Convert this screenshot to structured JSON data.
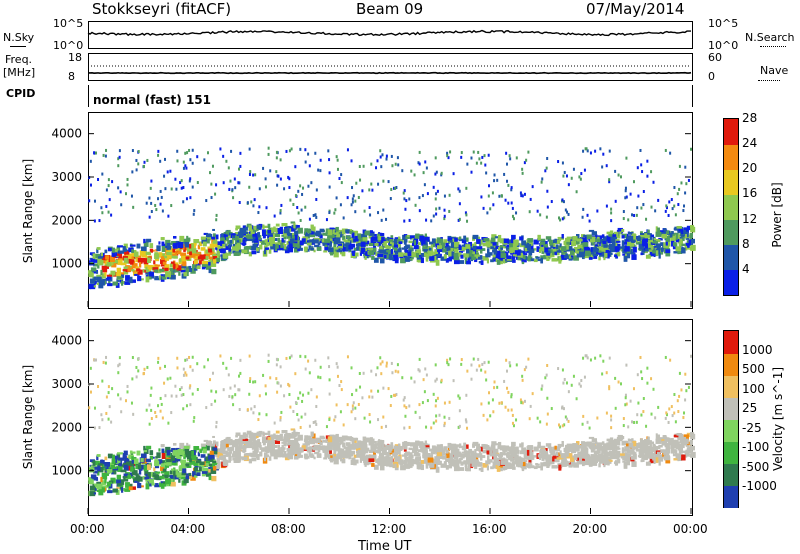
{
  "header": {
    "station": "Stokkseyri (fitACF)",
    "beam": "Beam 09",
    "date": "07/May/2014"
  },
  "nsky_panel": {
    "left_label": "N.Sky",
    "right_label": "N.Search",
    "left_ticks": [
      "10^5",
      "10^0"
    ],
    "right_ticks": [
      "10^5",
      "10^0"
    ]
  },
  "freq_panel": {
    "left_label_1": "Freq.",
    "left_label_2": "[MHz]",
    "right_label": "Nave",
    "left_ticks": [
      "18",
      "8"
    ],
    "right_ticks": [
      "60",
      "0"
    ]
  },
  "cpid_panel": {
    "label": "CPID",
    "value": "normal (fast) 151"
  },
  "x_axis": {
    "title": "Time UT",
    "tick_labels": [
      "00:00",
      "04:00",
      "08:00",
      "12:00",
      "16:00",
      "20:00",
      "00:00"
    ]
  },
  "chart_data": [
    {
      "type": "heatmap",
      "title": "",
      "ylabel": "Slant Range [km]",
      "xlabel": "Time UT",
      "ylim": [
        0,
        4500
      ],
      "y_ticks": [
        1000,
        2000,
        3000,
        4000
      ],
      "colorbar": {
        "label": "Power [dB]",
        "ticks": [
          "4",
          "8",
          "12",
          "16",
          "20",
          "24",
          "28"
        ],
        "colors": [
          "#0a1fe6",
          "#1f56a8",
          "#4f9a5e",
          "#8fc84f",
          "#e8c820",
          "#f38a10",
          "#e01a0c"
        ]
      },
      "series": [
        {
          "x": [
            0,
            1.5,
            3,
            4,
            5,
            6,
            8,
            10,
            12,
            14,
            16,
            18,
            20,
            22,
            24
          ],
          "y": [
            900,
            1050,
            1150,
            1250,
            1350,
            1600,
            1650,
            1550,
            1420,
            1380,
            1360,
            1350,
            1450,
            1520,
            1600
          ]
        }
      ]
    },
    {
      "type": "heatmap",
      "title": "",
      "ylabel": "Slant Range [km]",
      "xlabel": "Time UT",
      "ylim": [
        0,
        4500
      ],
      "y_ticks": [
        1000,
        2000,
        3000,
        4000
      ],
      "colorbar": {
        "label": "Velocity [m s^-1]",
        "ticks": [
          "1000",
          "500",
          "100",
          "25",
          "-25",
          "-100",
          "-500",
          "-1000"
        ],
        "colors": [
          "#1f3fb0",
          "#2f7a4e",
          "#3fb43f",
          "#7fd45f",
          "#c0c0b8",
          "#f0c060",
          "#f08a10",
          "#e01a0c"
        ]
      }
    }
  ]
}
